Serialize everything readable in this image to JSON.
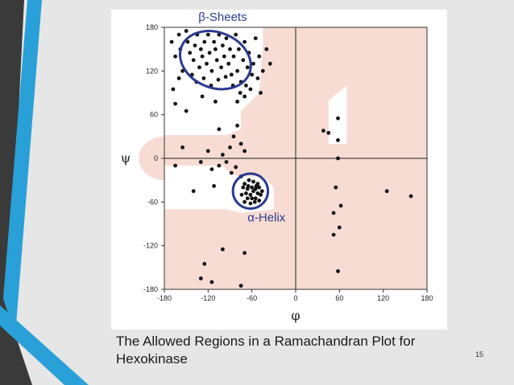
{
  "caption": "The Allowed Regions in a Ramachandran Plot for Hexokinase",
  "page_number": "15",
  "colors": {
    "background": "#e6e6e6",
    "stripe_dark": "#3a3a3a",
    "stripe_blue": "#2aa0d8",
    "allowed_region": "#f7dcd4",
    "core_region": "#ffffff",
    "points": "#111111",
    "ellipse": "#2b3a8f"
  },
  "chart_data": {
    "type": "scatter",
    "title": "",
    "xlabel": "φ",
    "ylabel": "ψ",
    "xlim": [
      -180,
      180
    ],
    "ylim": [
      -180,
      180
    ],
    "xticks": [
      -180,
      -120,
      -60,
      0,
      60,
      120,
      180
    ],
    "yticks": [
      180,
      120,
      60,
      0,
      -60,
      -120,
      -180
    ],
    "grid": false,
    "annotations": [
      {
        "label": "β-Sheets",
        "center": [
          -110,
          135
        ],
        "rx": 50,
        "ry": 38
      },
      {
        "label": "α-Helix",
        "center": [
          -62,
          -45
        ],
        "rx": 24,
        "ry": 24
      }
    ],
    "points": [
      [
        -170,
        160
      ],
      [
        -165,
        140
      ],
      [
        -160,
        170
      ],
      [
        -158,
        150
      ],
      [
        -155,
        120
      ],
      [
        -150,
        175
      ],
      [
        -148,
        160
      ],
      [
        -145,
        145
      ],
      [
        -140,
        135
      ],
      [
        -138,
        155
      ],
      [
        -135,
        170
      ],
      [
        -132,
        125
      ],
      [
        -130,
        150
      ],
      [
        -128,
        140
      ],
      [
        -125,
        160
      ],
      [
        -122,
        130
      ],
      [
        -120,
        170
      ],
      [
        -118,
        145
      ],
      [
        -115,
        120
      ],
      [
        -112,
        160
      ],
      [
        -110,
        150
      ],
      [
        -108,
        135
      ],
      [
        -105,
        170
      ],
      [
        -102,
        125
      ],
      [
        -100,
        155
      ],
      [
        -98,
        140
      ],
      [
        -95,
        165
      ],
      [
        -92,
        130
      ],
      [
        -90,
        150
      ],
      [
        -88,
        115
      ],
      [
        -85,
        140
      ],
      [
        -82,
        170
      ],
      [
        -80,
        120
      ],
      [
        -78,
        150
      ],
      [
        -75,
        105
      ],
      [
        -72,
        135
      ],
      [
        -70,
        160
      ],
      [
        -68,
        100
      ],
      [
        -66,
        125
      ],
      [
        -64,
        145
      ],
      [
        -62,
        95
      ],
      [
        -60,
        115
      ],
      [
        -58,
        130
      ],
      [
        -55,
        165
      ],
      [
        -52,
        110
      ],
      [
        -50,
        140
      ],
      [
        -48,
        90
      ],
      [
        -45,
        120
      ],
      [
        -40,
        150
      ],
      [
        -35,
        130
      ],
      [
        -142,
        115
      ],
      [
        -136,
        105
      ],
      [
        -126,
        110
      ],
      [
        -116,
        100
      ],
      [
        -106,
        108
      ],
      [
        -96,
        112
      ],
      [
        -86,
        100
      ],
      [
        -76,
        90
      ],
      [
        -70,
        85
      ],
      [
        -80,
        78
      ],
      [
        -168,
        95
      ],
      [
        -165,
        75
      ],
      [
        -160,
        110
      ],
      [
        -150,
        65
      ],
      [
        -128,
        85
      ],
      [
        -110,
        78
      ],
      [
        -105,
        40
      ],
      [
        -80,
        45
      ],
      [
        -75,
        20
      ],
      [
        -70,
        10
      ],
      [
        -85,
        30
      ],
      [
        -90,
        15
      ],
      [
        -100,
        5
      ],
      [
        -120,
        10
      ],
      [
        -115,
        -15
      ],
      [
        -105,
        -10
      ],
      [
        -95,
        -5
      ],
      [
        -88,
        -20
      ],
      [
        -82,
        -12
      ],
      [
        -75,
        -25
      ],
      [
        -140,
        -45
      ],
      [
        -112,
        -38
      ],
      [
        -130,
        -5
      ],
      [
        -155,
        15
      ],
      [
        -165,
        -10
      ],
      [
        -70,
        -35
      ],
      [
        -65,
        -38
      ],
      [
        -60,
        -40
      ],
      [
        -55,
        -42
      ],
      [
        -68,
        -48
      ],
      [
        -62,
        -50
      ],
      [
        -58,
        -45
      ],
      [
        -52,
        -48
      ],
      [
        -72,
        -40
      ],
      [
        -66,
        -55
      ],
      [
        -60,
        -55
      ],
      [
        -55,
        -55
      ],
      [
        -50,
        -40
      ],
      [
        -64,
        -30
      ],
      [
        -58,
        -32
      ],
      [
        -52,
        -35
      ],
      [
        -48,
        -50
      ],
      [
        -70,
        -60
      ],
      [
        -62,
        -62
      ],
      [
        -56,
        -60
      ],
      [
        -46,
        -45
      ],
      [
        -74,
        -50
      ],
      [
        -50,
        -58
      ],
      [
        -66,
        -42
      ],
      [
        -54,
        -38
      ],
      [
        38,
        38
      ],
      [
        45,
        35
      ],
      [
        58,
        55
      ],
      [
        58,
        25
      ],
      [
        58,
        0
      ],
      [
        55,
        -40
      ],
      [
        52,
        -75
      ],
      [
        62,
        -65
      ],
      [
        60,
        -95
      ],
      [
        52,
        -105
      ],
      [
        58,
        -155
      ],
      [
        125,
        -45
      ],
      [
        158,
        -52
      ],
      [
        -125,
        -145
      ],
      [
        -130,
        -165
      ],
      [
        -115,
        -170
      ],
      [
        -75,
        -175
      ],
      [
        -100,
        -125
      ],
      [
        -70,
        -130
      ]
    ]
  }
}
